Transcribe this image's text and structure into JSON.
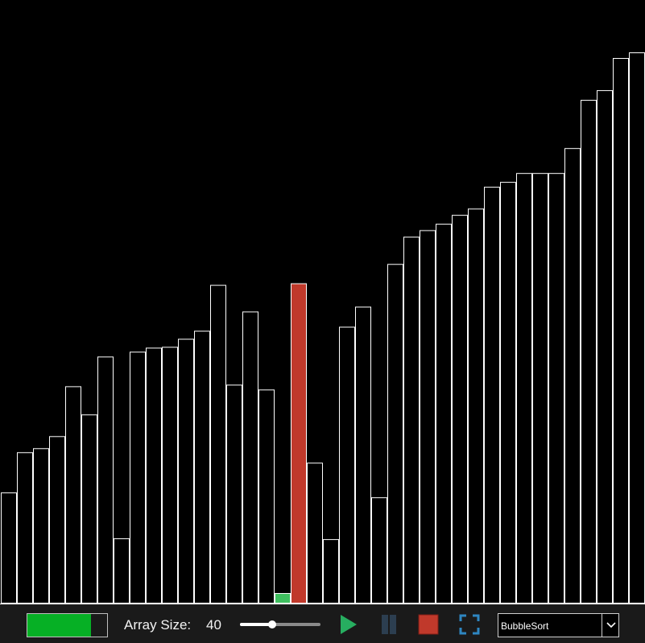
{
  "controls": {
    "progress": 0.8,
    "array_size_label": "Array Size:",
    "array_size_value": "40",
    "slider_fraction": 0.4,
    "algorithm": "BubbleSort"
  },
  "colors": {
    "bar_stroke": "#ffffff",
    "bar_fill": "#000000",
    "compare_fill": "#c0392b",
    "compare_stroke": "#ffffff",
    "sorted_fill": "#3fbf5f",
    "progress_fill": "#06b025",
    "play": "#27ae60",
    "pause": "#2c3e50",
    "stop": "#c0392b",
    "fullscreen": "#2e86c1"
  },
  "chart_data": {
    "type": "bar",
    "ylim": [
      0,
      685
    ],
    "values": [
      138,
      188,
      193,
      208,
      270,
      235,
      307,
      81,
      313,
      318,
      319,
      329,
      339,
      396,
      272,
      363,
      266,
      13,
      398,
      175,
      80,
      344,
      369,
      132,
      422,
      456,
      464,
      472,
      483,
      491,
      518,
      524,
      535,
      535,
      535,
      566,
      626,
      638,
      678,
      685
    ],
    "highlight": {
      "compare": [
        18
      ],
      "sorted_partial": [
        17
      ]
    }
  }
}
